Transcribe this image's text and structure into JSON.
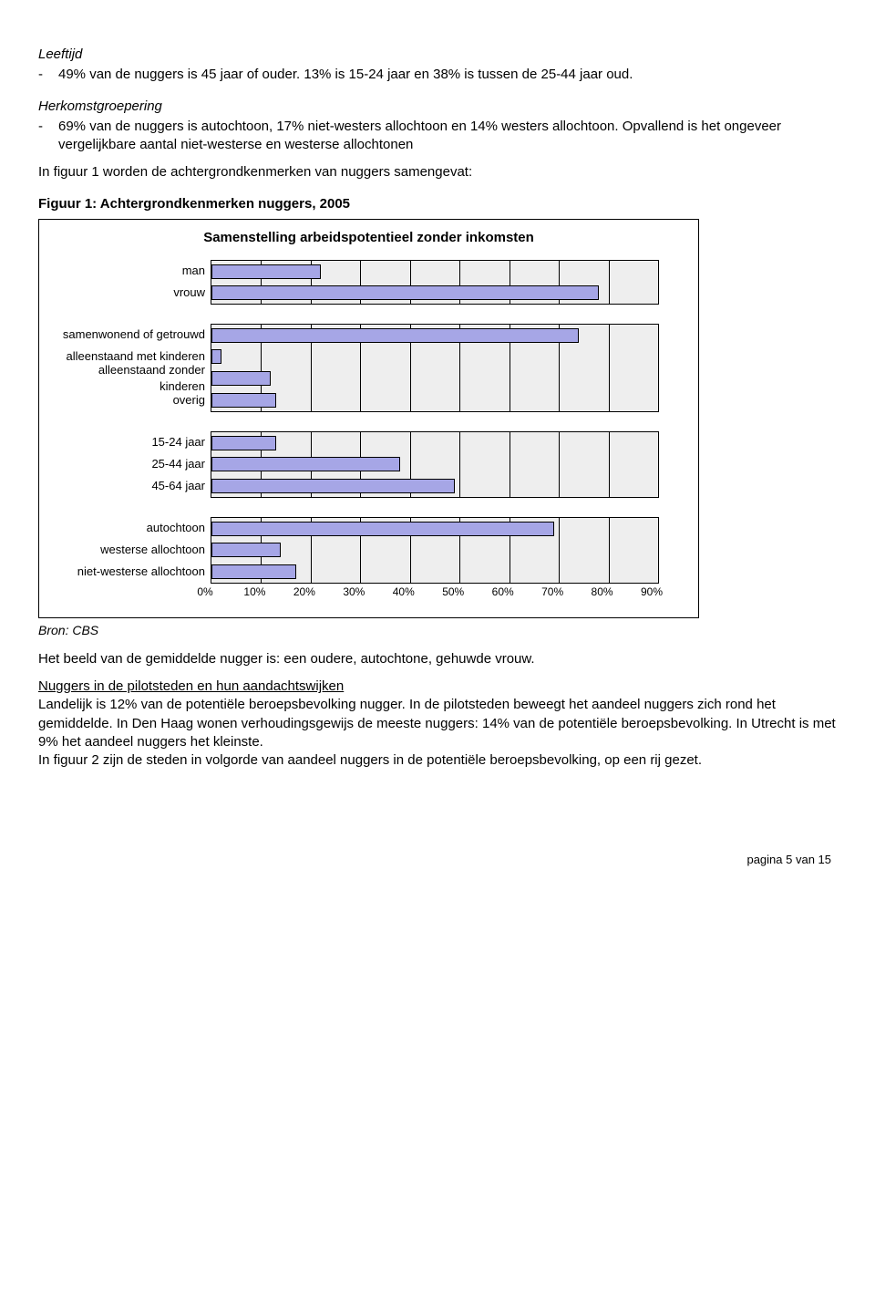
{
  "leeftijd": {
    "heading": "Leeftijd",
    "bullet": "49% van de nuggers is 45 jaar of ouder. 13% is 15-24 jaar en 38% is tussen de 25-44 jaar oud."
  },
  "herkomst": {
    "heading": "Herkomstgroepering",
    "bullet": "69% van de nuggers is autochtoon, 17% niet-westers allochtoon en 14% westers allochtoon. Opvallend is het ongeveer vergelijkbare aantal niet-westerse en westerse allochtonen"
  },
  "intro_para": "In figuur 1 worden de achtergrondkenmerken van nuggers samengevat:",
  "fig_title": "Figuur 1: Achtergrondkenmerken nuggers, 2005",
  "chart": {
    "title": "Samenstelling arbeidspotentieel zonder inkomsten",
    "bar_fill": "#a6a6e6",
    "bar_stroke": "#000000",
    "plot_bg": "#eeeeee",
    "grid_color": "#000000",
    "xmax": 90,
    "xtick_step": 10,
    "xticks": [
      "0%",
      "10%",
      "20%",
      "30%",
      "40%",
      "50%",
      "60%",
      "70%",
      "80%",
      "90%"
    ],
    "groups": [
      {
        "bars": [
          {
            "label": "man",
            "value": 22
          },
          {
            "label": "vrouw",
            "value": 78
          }
        ]
      },
      {
        "bars": [
          {
            "label": "samenwonend of getrouwd",
            "value": 74
          },
          {
            "label": "alleenstaand met kinderen",
            "value": 2
          },
          {
            "label": "alleenstaand zonder kinderen",
            "value": 12
          },
          {
            "label": "overig",
            "value": 13
          }
        ]
      },
      {
        "bars": [
          {
            "label": "15-24 jaar",
            "value": 13
          },
          {
            "label": "25-44 jaar",
            "value": 38
          },
          {
            "label": "45-64 jaar",
            "value": 49
          }
        ]
      },
      {
        "bars": [
          {
            "label": "autochtoon",
            "value": 69
          },
          {
            "label": "westerse allochtoon",
            "value": 14
          },
          {
            "label": "niet-westerse allochtoon",
            "value": 17
          }
        ]
      }
    ]
  },
  "source": "Bron: CBS",
  "para_after_chart": "Het beeld van de gemiddelde nugger is: een oudere, autochtone, gehuwde vrouw.",
  "pilot": {
    "heading": "Nuggers in de pilotsteden en hun aandachtswijken",
    "body": "Landelijk is 12% van de potentiële beroepsbevolking nugger. In de pilotsteden beweegt het aandeel nuggers zich rond het gemiddelde. In Den Haag wonen verhoudingsgewijs de meeste nuggers: 14% van de potentiële beroepsbevolking. In Utrecht is met 9% het aandeel nuggers het kleinste.",
    "body2": "In figuur 2 zijn de steden in volgorde van aandeel nuggers in de potentiële beroepsbevolking, op een rij gezet."
  },
  "footer": "pagina 5 van 15"
}
